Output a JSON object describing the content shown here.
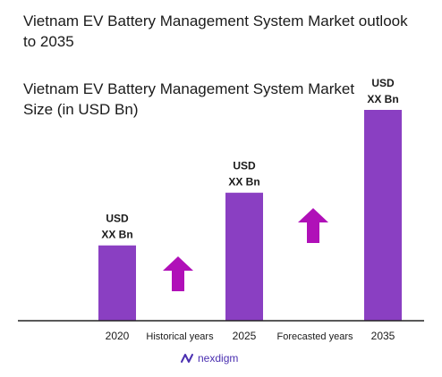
{
  "title": "Vietnam EV Battery Management System Market outlook to 2035",
  "subtitle": "Vietnam EV Battery Management System Market Size (in USD Bn)",
  "colors": {
    "bar": "#8a3fc2",
    "arrow": "#b010b8",
    "axis": "#222222",
    "logo": "#4a2fb0"
  },
  "chart_data": {
    "type": "bar",
    "categories": [
      "2020",
      "2025",
      "2035"
    ],
    "values": [
      1,
      1.7,
      2.8
    ],
    "data_labels": [
      [
        "USD",
        "XX Bn"
      ],
      [
        "USD",
        "XX Bn"
      ],
      [
        "USD",
        "XX Bn"
      ]
    ],
    "annotations": [
      "Historical years",
      "Forecasted years"
    ],
    "title": "Vietnam EV Battery Management System Market outlook to 2035",
    "subtitle": "Vietnam EV Battery Management System Market Size (in USD Bn)",
    "legend": "none",
    "grid": false
  },
  "logo": {
    "text": "nexdigm",
    "icon": "nexdigm-logo-icon"
  }
}
